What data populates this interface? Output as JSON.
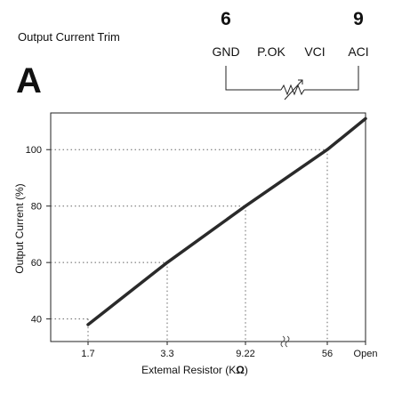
{
  "header": {
    "title": "Output Current Trim",
    "panel_letter": "A"
  },
  "schematic": {
    "pin_numbers": [
      "6",
      "9"
    ],
    "pins": [
      "GND",
      "P.OK",
      "VCI",
      "ACI"
    ]
  },
  "chart_data": {
    "type": "line",
    "xlabel": "Extemal Resistor (K",
    "xlabel_unit": "Ω",
    "xlabel_close": ")",
    "ylabel": "Output Current (%)",
    "x_ticks": [
      "1.7",
      "3.3",
      "9.22",
      "56",
      "Open"
    ],
    "y_ticks": [
      40,
      60,
      80,
      100
    ],
    "ylim": [
      32,
      113
    ],
    "axis_break": true,
    "grid": false,
    "reference_lines": "dotted guides at each labelled resistor value and current level",
    "series": [
      {
        "color": "#2a2a2a",
        "points": [
          {
            "x": "1.7",
            "y": 38
          },
          {
            "x": "3.3",
            "y": 60
          },
          {
            "x": "9.22",
            "y": 80
          },
          {
            "x": "56",
            "y": 100
          },
          {
            "x": "Open",
            "y": 111
          }
        ]
      }
    ],
    "annotations": [
      {
        "x": "1.7",
        "y": 40
      },
      {
        "x": "3.3",
        "y": 60
      },
      {
        "x": "9.22",
        "y": 80
      },
      {
        "x": "56",
        "y": 100
      }
    ]
  }
}
